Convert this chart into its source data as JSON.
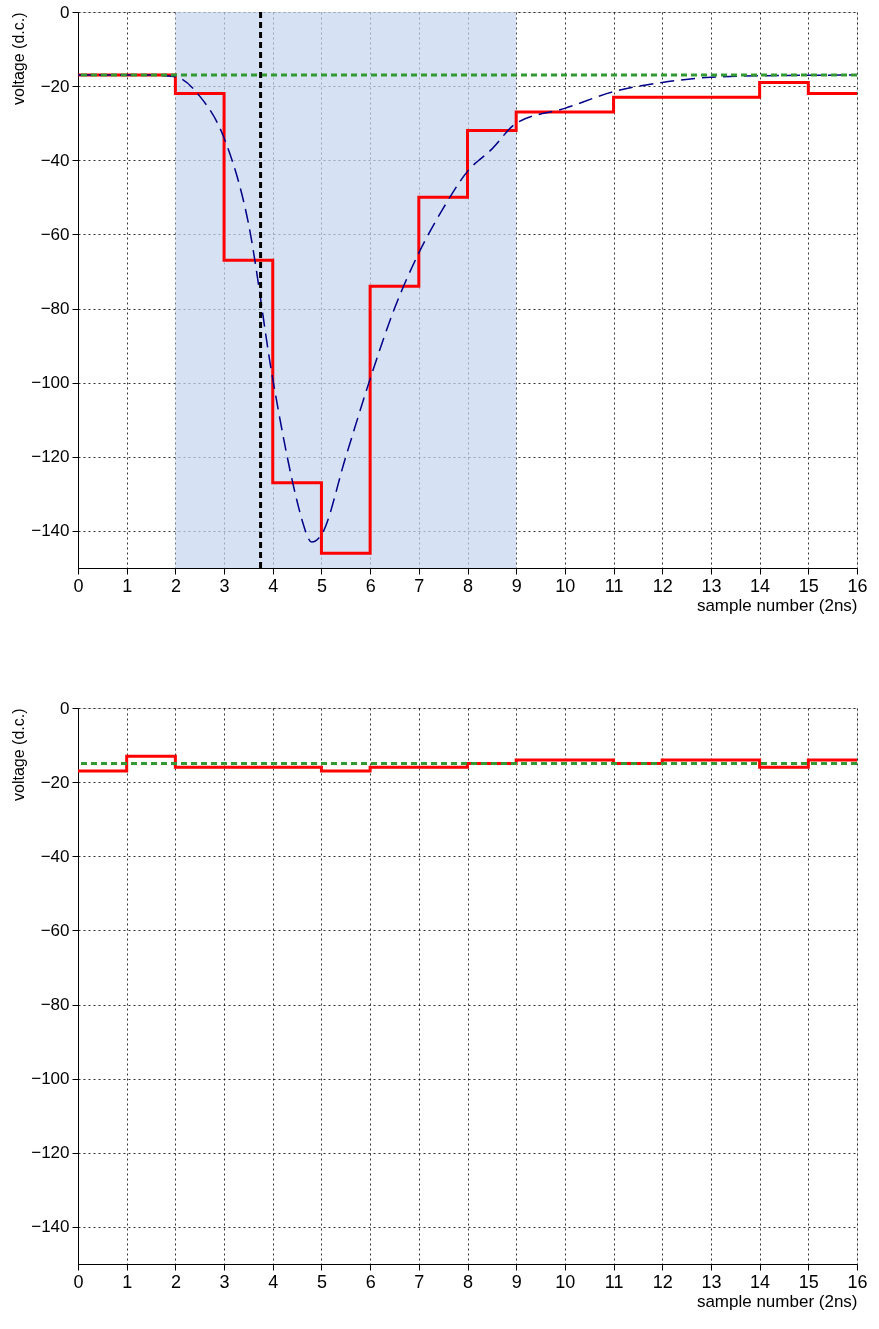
{
  "chart_data": [
    {
      "type": "step",
      "xlabel": "sample number (2ns)",
      "ylabel": "voltage (d.c.)",
      "xlim": [
        0,
        16
      ],
      "ylim": [
        -150,
        0
      ],
      "xticks": [
        0,
        1,
        2,
        3,
        4,
        5,
        6,
        7,
        8,
        9,
        10,
        11,
        12,
        13,
        14,
        15,
        16
      ],
      "yticks": [
        -140,
        -120,
        -100,
        -80,
        -60,
        -40,
        -20,
        0
      ],
      "grid": true,
      "series": [
        {
          "color": "#ff0000",
          "x": [
            0,
            1,
            2,
            3,
            4,
            5,
            6,
            7,
            8,
            9,
            10,
            11,
            12,
            13,
            14,
            15,
            16
          ],
          "values": [
            -17,
            -17,
            -22,
            -67,
            -127,
            -146,
            -74,
            -50,
            -32,
            -27,
            -27,
            -23,
            -23,
            -23,
            -19,
            -22,
            -22
          ]
        },
        {
          "type": "line",
          "color": "#00008b",
          "line_style": "dashed",
          "x": [
            0,
            1,
            1.5,
            2,
            2.5,
            3,
            3.5,
            4,
            4.5,
            4.6,
            4.8,
            5,
            5.5,
            6,
            6.5,
            7,
            7.5,
            8,
            8.5,
            9,
            10,
            11,
            12,
            13,
            14,
            16
          ],
          "values": [
            -17,
            -17,
            -17,
            -17.5,
            -22.7,
            -34,
            -57,
            -99,
            -132,
            -137,
            -143,
            -141,
            -120,
            -99,
            -80,
            -65,
            -53,
            -43,
            -37,
            -30,
            -26,
            -21.5,
            -19,
            -17.6,
            -17.2,
            -17
          ]
        }
      ],
      "ref_lines": [
        {
          "axis": "y",
          "value": -17,
          "color": "#339933",
          "line_style": "dashed"
        },
        {
          "axis": "x",
          "value": 3.75,
          "color": "#000000",
          "line_style": "dashed"
        }
      ],
      "bands": [
        {
          "axis": "x",
          "from": 2,
          "to": 9,
          "color": "#c4d4ee"
        }
      ]
    },
    {
      "type": "step",
      "xlabel": "sample number (2ns)",
      "ylabel": "voltage (d.c.)",
      "xlim": [
        0,
        16
      ],
      "ylim": [
        -150,
        0
      ],
      "xticks": [
        0,
        1,
        2,
        3,
        4,
        5,
        6,
        7,
        8,
        9,
        10,
        11,
        12,
        13,
        14,
        15,
        16
      ],
      "yticks": [
        -140,
        -120,
        -100,
        -80,
        -60,
        -40,
        -20,
        0
      ],
      "grid": true,
      "series": [
        {
          "color": "#ff0000",
          "x": [
            0,
            1,
            2,
            3,
            4,
            5,
            6,
            7,
            8,
            9,
            10,
            11,
            12,
            13,
            14,
            15,
            16
          ],
          "values": [
            -17,
            -13,
            -16,
            -16,
            -16,
            -17,
            -16,
            -16,
            -15,
            -14,
            -14,
            -15,
            -14,
            -14,
            -16,
            -14,
            -14
          ]
        }
      ],
      "ref_lines": [
        {
          "axis": "y",
          "value": -15,
          "color": "#339933",
          "line_style": "dashed"
        }
      ]
    }
  ]
}
